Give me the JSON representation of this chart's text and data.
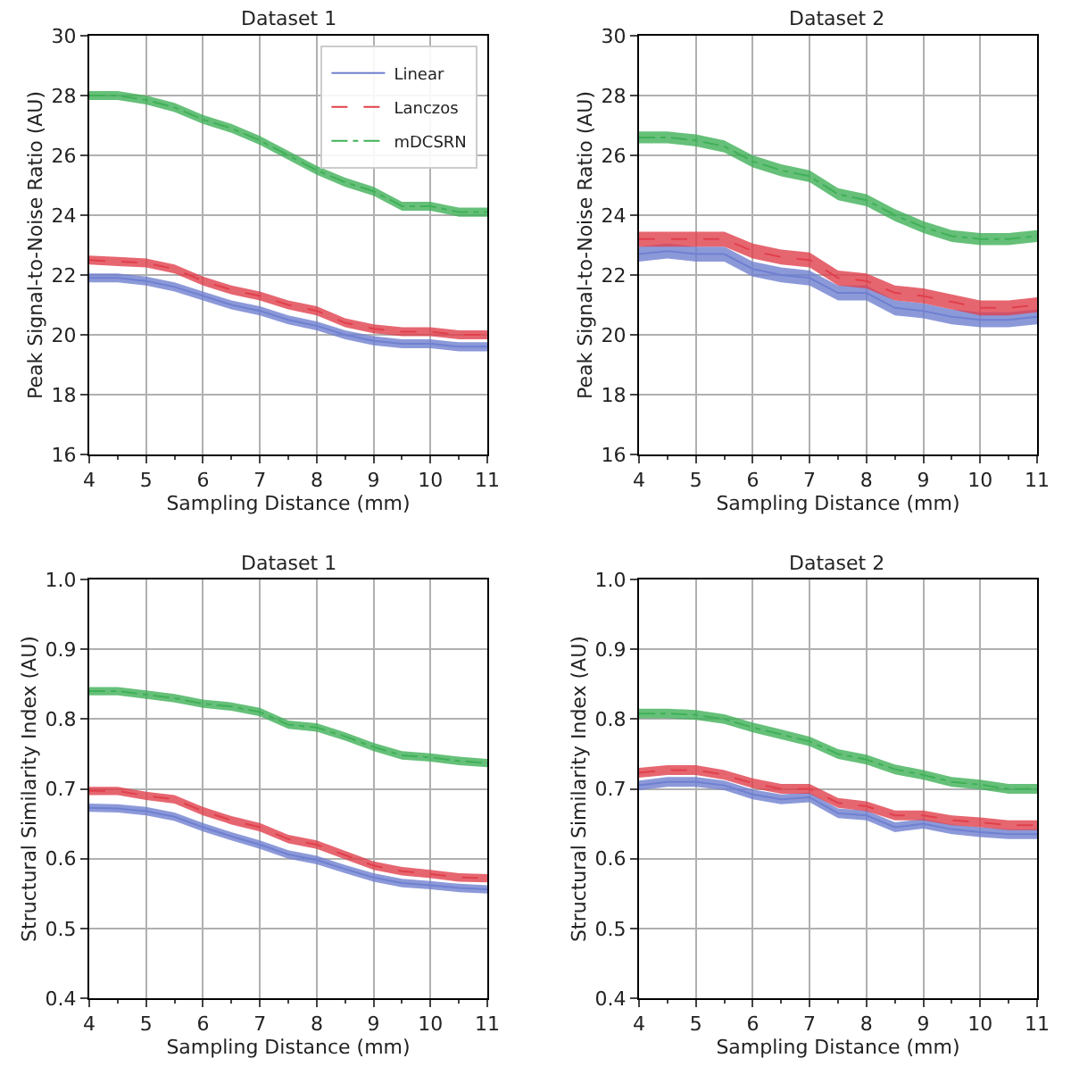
{
  "chart_data": [
    {
      "type": "line",
      "title": "Dataset 1",
      "xlabel": "Sampling Distance (mm)",
      "ylabel": "Peak Signal-to-Noise Ratio (AU)",
      "x": [
        4,
        4.5,
        5,
        5.5,
        6,
        6.5,
        7,
        7.5,
        8,
        8.5,
        9,
        9.5,
        10,
        10.5,
        11
      ],
      "xlim": [
        4,
        11
      ],
      "xticks": [
        4,
        5,
        6,
        7,
        8,
        9,
        10,
        11
      ],
      "ylim": [
        16,
        30
      ],
      "yticks": [
        16,
        18,
        20,
        22,
        24,
        26,
        28,
        30
      ],
      "grid": true,
      "legend": "top right",
      "marker": "none",
      "series": [
        {
          "name": "Linear",
          "color": "#6f80d0",
          "line_style": "solid",
          "values": [
            21.9,
            21.9,
            21.8,
            21.6,
            21.3,
            21.0,
            20.8,
            20.5,
            20.3,
            20.0,
            19.8,
            19.7,
            19.7,
            19.6,
            19.6
          ],
          "lower": [
            21.75,
            21.75,
            21.65,
            21.45,
            21.15,
            20.85,
            20.65,
            20.35,
            20.15,
            19.85,
            19.65,
            19.55,
            19.55,
            19.45,
            19.45
          ],
          "upper": [
            22.05,
            22.05,
            21.95,
            21.75,
            21.45,
            21.15,
            20.95,
            20.65,
            20.45,
            20.15,
            19.95,
            19.85,
            19.85,
            19.75,
            19.75
          ]
        },
        {
          "name": "Lanczos",
          "color": "#e0404c",
          "line_style": "dashed",
          "values": [
            22.5,
            22.45,
            22.4,
            22.2,
            21.8,
            21.5,
            21.3,
            21.0,
            20.8,
            20.4,
            20.2,
            20.1,
            20.1,
            20.0,
            20.0
          ],
          "lower": [
            22.35,
            22.3,
            22.25,
            22.05,
            21.65,
            21.35,
            21.15,
            20.85,
            20.65,
            20.25,
            20.05,
            19.95,
            19.95,
            19.85,
            19.85
          ],
          "upper": [
            22.65,
            22.6,
            22.55,
            22.35,
            21.95,
            21.65,
            21.45,
            21.15,
            20.95,
            20.55,
            20.35,
            20.25,
            20.25,
            20.15,
            20.15
          ]
        },
        {
          "name": "mDCSRN",
          "color": "#40b058",
          "line_style": "dashdot",
          "values": [
            28.0,
            28.0,
            27.85,
            27.6,
            27.2,
            26.9,
            26.5,
            26.0,
            25.5,
            25.1,
            24.8,
            24.3,
            24.3,
            24.1,
            24.1
          ],
          "lower": [
            27.85,
            27.85,
            27.7,
            27.45,
            27.05,
            26.75,
            26.35,
            25.85,
            25.35,
            24.95,
            24.65,
            24.15,
            24.15,
            23.95,
            23.95
          ],
          "upper": [
            28.15,
            28.15,
            28.0,
            27.75,
            27.35,
            27.05,
            26.65,
            26.15,
            25.65,
            25.25,
            24.95,
            24.45,
            24.45,
            24.25,
            24.25
          ]
        }
      ]
    },
    {
      "type": "line",
      "title": "Dataset 2",
      "xlabel": "Sampling Distance (mm)",
      "ylabel": "Peak Signal-to-Noise Ratio (AU)",
      "x": [
        4,
        4.5,
        5,
        5.5,
        6,
        6.5,
        7,
        7.5,
        8,
        8.5,
        9,
        9.5,
        10,
        10.5,
        11
      ],
      "xlim": [
        4,
        11
      ],
      "xticks": [
        4,
        5,
        6,
        7,
        8,
        9,
        10,
        11
      ],
      "ylim": [
        16,
        30
      ],
      "yticks": [
        16,
        18,
        20,
        22,
        24,
        26,
        28,
        30
      ],
      "grid": true,
      "marker": "none",
      "series": [
        {
          "color": "#6f80d0",
          "line_style": "solid",
          "values": [
            22.7,
            22.8,
            22.7,
            22.7,
            22.2,
            22.0,
            21.9,
            21.4,
            21.4,
            20.9,
            20.8,
            20.6,
            20.5,
            20.5,
            20.6
          ],
          "lower": [
            22.45,
            22.55,
            22.45,
            22.45,
            21.95,
            21.75,
            21.65,
            21.15,
            21.15,
            20.65,
            20.55,
            20.35,
            20.25,
            20.25,
            20.35
          ],
          "upper": [
            22.95,
            23.05,
            22.95,
            22.95,
            22.45,
            22.25,
            22.15,
            21.65,
            21.65,
            21.15,
            21.05,
            20.85,
            20.75,
            20.75,
            20.85
          ]
        },
        {
          "color": "#e0404c",
          "line_style": "dashed",
          "values": [
            23.2,
            23.2,
            23.2,
            23.2,
            22.8,
            22.6,
            22.5,
            21.9,
            21.8,
            21.4,
            21.3,
            21.1,
            20.9,
            20.9,
            21.0
          ],
          "lower": [
            22.95,
            22.95,
            22.95,
            22.95,
            22.55,
            22.35,
            22.25,
            21.65,
            21.55,
            21.15,
            21.05,
            20.85,
            20.65,
            20.65,
            20.75
          ],
          "upper": [
            23.45,
            23.45,
            23.45,
            23.45,
            23.05,
            22.85,
            22.75,
            22.15,
            22.05,
            21.65,
            21.55,
            21.35,
            21.15,
            21.15,
            21.25
          ]
        },
        {
          "color": "#40b058",
          "line_style": "dashdot",
          "values": [
            26.6,
            26.6,
            26.5,
            26.3,
            25.8,
            25.5,
            25.3,
            24.7,
            24.5,
            24.0,
            23.6,
            23.3,
            23.2,
            23.2,
            23.3
          ],
          "lower": [
            26.4,
            26.4,
            26.3,
            26.1,
            25.6,
            25.3,
            25.1,
            24.5,
            24.3,
            23.8,
            23.4,
            23.1,
            23.0,
            23.0,
            23.1
          ],
          "upper": [
            26.8,
            26.8,
            26.7,
            26.5,
            26.0,
            25.7,
            25.5,
            24.9,
            24.7,
            24.2,
            23.8,
            23.5,
            23.4,
            23.4,
            23.5
          ]
        }
      ]
    },
    {
      "type": "line",
      "title": "Dataset 1",
      "xlabel": "Sampling Distance (mm)",
      "ylabel": "Structural Similarity Index (AU)",
      "x": [
        4,
        4.5,
        5,
        5.5,
        6,
        6.5,
        7,
        7.5,
        8,
        8.5,
        9,
        9.5,
        10,
        10.5,
        11
      ],
      "xlim": [
        4,
        11
      ],
      "xticks": [
        4,
        5,
        6,
        7,
        8,
        9,
        10,
        11
      ],
      "ylim": [
        0.4,
        1.0
      ],
      "yticks": [
        {
          "value": 0.4,
          "label": "0.4"
        },
        {
          "value": 0.5,
          "label": "0.5"
        },
        {
          "value": 0.6,
          "label": "0.6"
        },
        {
          "value": 0.7,
          "label": "0.7"
        },
        {
          "value": 0.8,
          "label": "0.8"
        },
        {
          "value": 0.9,
          "label": "0.9"
        },
        {
          "value": 1.0,
          "label": "1.0"
        }
      ],
      "grid": true,
      "marker": "none",
      "series": [
        {
          "color": "#6f80d0",
          "line_style": "solid",
          "values": [
            0.673,
            0.672,
            0.668,
            0.66,
            0.645,
            0.632,
            0.62,
            0.606,
            0.598,
            0.585,
            0.573,
            0.565,
            0.562,
            0.558,
            0.556
          ],
          "lower": [
            0.667,
            0.666,
            0.662,
            0.654,
            0.639,
            0.626,
            0.614,
            0.6,
            0.592,
            0.579,
            0.567,
            0.559,
            0.556,
            0.552,
            0.55
          ],
          "upper": [
            0.679,
            0.678,
            0.674,
            0.666,
            0.651,
            0.638,
            0.626,
            0.612,
            0.604,
            0.591,
            0.579,
            0.571,
            0.568,
            0.564,
            0.562
          ]
        },
        {
          "color": "#e0404c",
          "line_style": "dashed",
          "values": [
            0.697,
            0.697,
            0.69,
            0.685,
            0.668,
            0.655,
            0.645,
            0.628,
            0.62,
            0.605,
            0.59,
            0.582,
            0.578,
            0.573,
            0.572
          ],
          "lower": [
            0.691,
            0.691,
            0.684,
            0.679,
            0.662,
            0.649,
            0.639,
            0.622,
            0.614,
            0.599,
            0.584,
            0.576,
            0.572,
            0.567,
            0.566
          ],
          "upper": [
            0.703,
            0.703,
            0.696,
            0.691,
            0.674,
            0.661,
            0.651,
            0.634,
            0.626,
            0.611,
            0.596,
            0.588,
            0.584,
            0.579,
            0.578
          ]
        },
        {
          "color": "#40b058",
          "line_style": "dashdot",
          "values": [
            0.84,
            0.84,
            0.835,
            0.83,
            0.822,
            0.818,
            0.81,
            0.792,
            0.788,
            0.775,
            0.76,
            0.748,
            0.745,
            0.74,
            0.737
          ],
          "lower": [
            0.834,
            0.834,
            0.829,
            0.824,
            0.816,
            0.812,
            0.804,
            0.786,
            0.782,
            0.769,
            0.754,
            0.742,
            0.739,
            0.734,
            0.731
          ],
          "upper": [
            0.846,
            0.846,
            0.841,
            0.836,
            0.828,
            0.824,
            0.816,
            0.798,
            0.794,
            0.781,
            0.766,
            0.754,
            0.751,
            0.746,
            0.743
          ]
        }
      ]
    },
    {
      "type": "line",
      "title": "Dataset 2",
      "xlabel": "Sampling Distance (mm)",
      "ylabel": "Structural Similarity Index (AU)",
      "x": [
        4,
        4.5,
        5,
        5.5,
        6,
        6.5,
        7,
        7.5,
        8,
        8.5,
        9,
        9.5,
        10,
        10.5,
        11
      ],
      "xlim": [
        4,
        11
      ],
      "xticks": [
        4,
        5,
        6,
        7,
        8,
        9,
        10,
        11
      ],
      "ylim": [
        0.4,
        1.0
      ],
      "yticks": [
        {
          "value": 0.4,
          "label": "0.4"
        },
        {
          "value": 0.5,
          "label": "0.5"
        },
        {
          "value": 0.6,
          "label": "0.6"
        },
        {
          "value": 0.7,
          "label": "0.7"
        },
        {
          "value": 0.8,
          "label": "0.8"
        },
        {
          "value": 0.9,
          "label": "0.9"
        },
        {
          "value": 1.0,
          "label": "1.0"
        }
      ],
      "grid": true,
      "marker": "none",
      "series": [
        {
          "color": "#6f80d0",
          "line_style": "solid",
          "values": [
            0.705,
            0.71,
            0.71,
            0.705,
            0.692,
            0.685,
            0.688,
            0.665,
            0.662,
            0.645,
            0.65,
            0.642,
            0.638,
            0.635,
            0.635
          ],
          "lower": [
            0.698,
            0.703,
            0.703,
            0.698,
            0.685,
            0.678,
            0.681,
            0.658,
            0.655,
            0.638,
            0.643,
            0.635,
            0.631,
            0.628,
            0.628
          ],
          "upper": [
            0.712,
            0.717,
            0.717,
            0.712,
            0.699,
            0.692,
            0.695,
            0.672,
            0.669,
            0.652,
            0.657,
            0.649,
            0.645,
            0.642,
            0.642
          ]
        },
        {
          "color": "#e0404c",
          "line_style": "dashed",
          "values": [
            0.723,
            0.727,
            0.727,
            0.72,
            0.708,
            0.7,
            0.7,
            0.68,
            0.675,
            0.662,
            0.662,
            0.655,
            0.652,
            0.648,
            0.648
          ],
          "lower": [
            0.716,
            0.72,
            0.72,
            0.713,
            0.701,
            0.693,
            0.693,
            0.673,
            0.668,
            0.655,
            0.655,
            0.648,
            0.645,
            0.641,
            0.641
          ],
          "upper": [
            0.73,
            0.734,
            0.734,
            0.727,
            0.715,
            0.707,
            0.707,
            0.687,
            0.682,
            0.669,
            0.669,
            0.662,
            0.659,
            0.655,
            0.655
          ]
        },
        {
          "color": "#40b058",
          "line_style": "dashdot",
          "values": [
            0.808,
            0.808,
            0.806,
            0.8,
            0.788,
            0.778,
            0.768,
            0.75,
            0.742,
            0.728,
            0.72,
            0.71,
            0.706,
            0.7,
            0.7
          ],
          "lower": [
            0.801,
            0.801,
            0.799,
            0.793,
            0.781,
            0.771,
            0.761,
            0.743,
            0.735,
            0.721,
            0.713,
            0.703,
            0.699,
            0.693,
            0.693
          ],
          "upper": [
            0.815,
            0.815,
            0.813,
            0.807,
            0.795,
            0.785,
            0.775,
            0.757,
            0.749,
            0.735,
            0.727,
            0.717,
            0.713,
            0.707,
            0.707
          ]
        }
      ]
    }
  ]
}
